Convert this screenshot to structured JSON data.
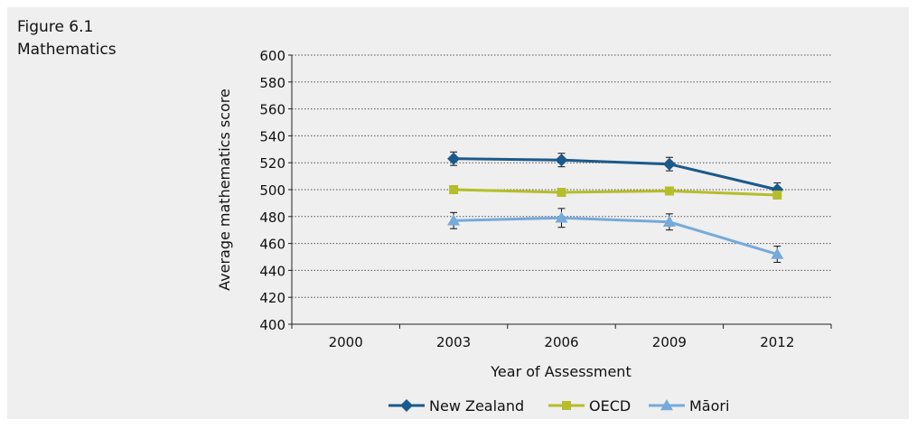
{
  "figure": {
    "number": "Figure 6.1",
    "subject": "Mathematics"
  },
  "chart_data": {
    "type": "line",
    "title": "",
    "xlabel": "Year of Assessment",
    "ylabel": "Average mathematics score",
    "categories": [
      "2000",
      "2003",
      "2006",
      "2009",
      "2012"
    ],
    "yticks": [
      "400",
      "420",
      "440",
      "460",
      "480",
      "500",
      "520",
      "540",
      "560",
      "580",
      "600"
    ],
    "ylim": [
      400,
      600
    ],
    "grid": "horizontal dotted",
    "legend_position": "bottom-center",
    "series": [
      {
        "name": "New Zealand",
        "color": "#1b5a8c",
        "marker": "diamond",
        "values": [
          null,
          523,
          522,
          519,
          500
        ],
        "error": [
          null,
          5,
          5,
          5,
          5
        ]
      },
      {
        "name": "OECD",
        "color": "#b5bd2a",
        "marker": "square",
        "values": [
          null,
          500,
          498,
          499,
          496
        ],
        "error": [
          null,
          0,
          0,
          0,
          0
        ]
      },
      {
        "name": "Māori",
        "color": "#75aadb",
        "marker": "triangle",
        "values": [
          null,
          477,
          479,
          476,
          452
        ],
        "error": [
          null,
          6,
          7,
          6,
          6
        ]
      }
    ]
  }
}
